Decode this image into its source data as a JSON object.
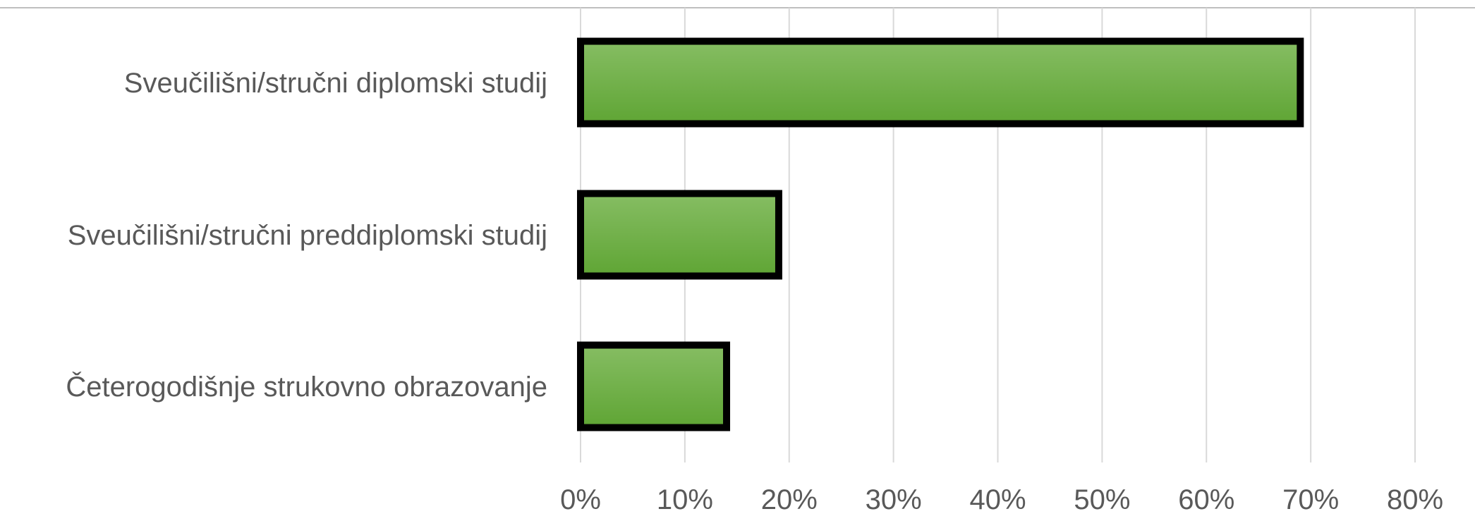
{
  "chart_data": {
    "type": "bar",
    "orientation": "horizontal",
    "categories": [
      "Sveučilišni/stručni diplomski studij",
      "Sveučilišni/stručni preddiplomski studij",
      "Četerogodišnje strukovno obrazovanje"
    ],
    "values": [
      69,
      19,
      14
    ],
    "value_unit": "%",
    "x_ticks": [
      "0%",
      "10%",
      "20%",
      "30%",
      "40%",
      "50%",
      "60%",
      "70%",
      "80%"
    ],
    "xlim": [
      0,
      80
    ],
    "grid": "vertical",
    "legend": "none",
    "title": "",
    "xlabel": "",
    "ylabel": "",
    "colors": {
      "bar_fill_top": "#86bd63",
      "bar_fill_bottom": "#5fa534",
      "bar_border": "#000000",
      "grid": "#d9d9d9",
      "text": "#595959",
      "top_rule": "#bfbfbf"
    }
  }
}
